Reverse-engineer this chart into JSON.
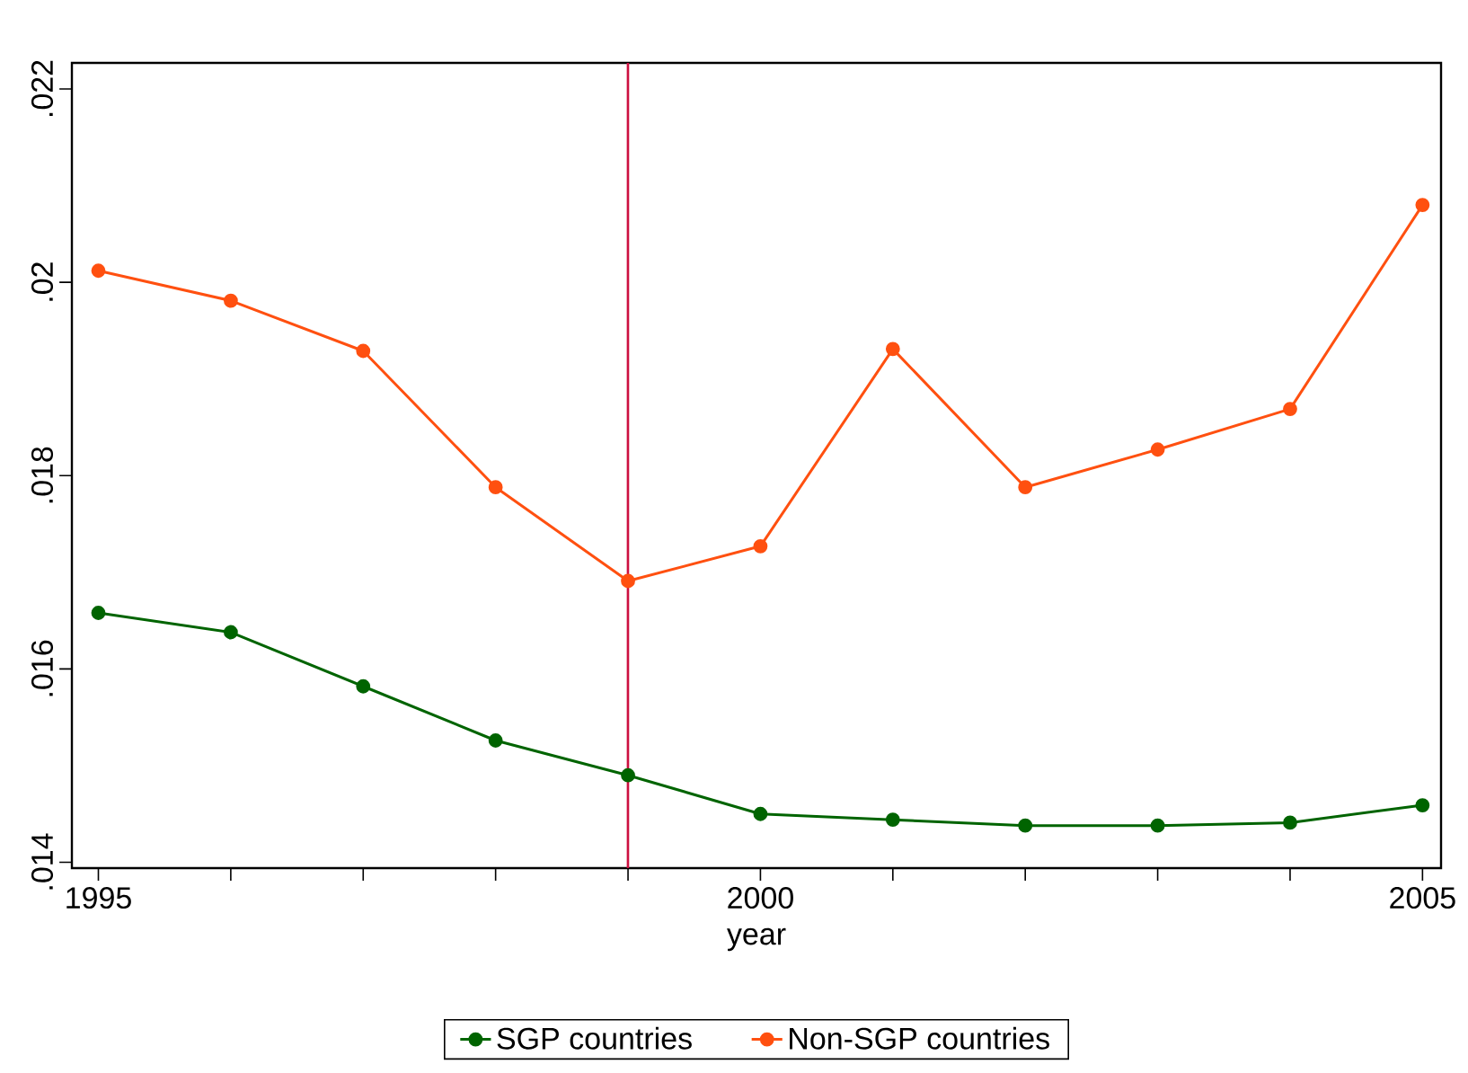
{
  "chart_data": {
    "type": "line",
    "xlabel": "year",
    "x": [
      1995,
      1996,
      1997,
      1998,
      1999,
      2000,
      2001,
      2002,
      2003,
      2004,
      2005
    ],
    "series": [
      {
        "name": "SGP countries",
        "color": "#006400",
        "values": [
          0.01658,
          0.01638,
          0.01582,
          0.01526,
          0.0149,
          0.0145,
          0.01444,
          0.01438,
          0.01438,
          0.01441,
          0.01459
        ]
      },
      {
        "name": "Non-SGP countries",
        "color": "#ff5010",
        "values": [
          0.02012,
          0.01981,
          0.01929,
          0.01788,
          0.01691,
          0.01727,
          0.01931,
          0.01788,
          0.01827,
          0.01869,
          0.0208
        ]
      }
    ],
    "xlim": [
      1994.8,
      2005.14
    ],
    "ylim": [
      0.01394,
      0.02227
    ],
    "xticks": [
      1995,
      {
        "value": 1996,
        "label": null
      },
      {
        "value": 1997,
        "label": null
      },
      {
        "value": 1998,
        "label": null
      },
      {
        "value": 1999,
        "label": null
      },
      2000,
      {
        "value": 2001,
        "label": null
      },
      {
        "value": 2002,
        "label": null
      },
      {
        "value": 2003,
        "label": null
      },
      {
        "value": 2004,
        "label": null
      },
      2005
    ],
    "yticks": [
      {
        "value": 0.014,
        "label": ".014"
      },
      {
        "value": 0.016,
        "label": ".016"
      },
      {
        "value": 0.018,
        "label": ".018"
      },
      {
        "value": 0.02,
        "label": ".02"
      },
      {
        "value": 0.022,
        "label": ".022"
      }
    ],
    "ref_lines": [
      {
        "axis": "x",
        "value": 1999,
        "color": "#cc1040"
      }
    ],
    "marker": "circle",
    "line_style": "solid",
    "grid": false,
    "legend": "bottom"
  }
}
